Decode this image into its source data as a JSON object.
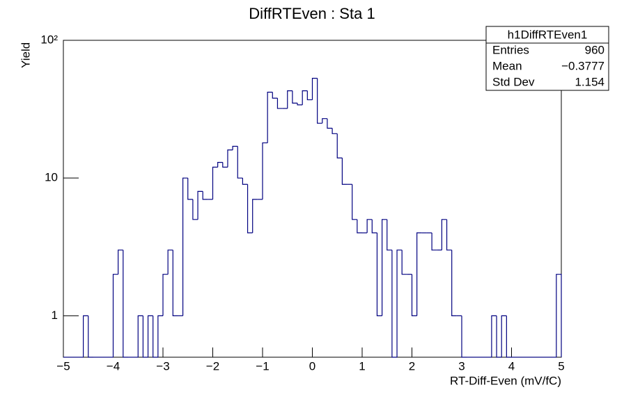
{
  "chart_data": {
    "type": "histogram",
    "title": "DiffRTEven : Sta 1",
    "x_label": "RT-Diff-Even (mV/fC)",
    "y_label": "Yield",
    "color": "#000080",
    "log_y": true,
    "bins": [
      -5,
      -4.9,
      -4.8,
      -4.7,
      -4.6,
      -4.5,
      -4.4,
      -4.3,
      -4.2,
      -4.1,
      -4,
      -3.9,
      -3.8,
      -3.7,
      -3.6,
      -3.5,
      -3.4,
      -3.3,
      -3.2,
      -3.1,
      -3,
      -2.9,
      -2.8,
      -2.7,
      -2.6,
      -2.5,
      -2.4,
      -2.3,
      -2.2,
      -2.1,
      -2,
      -1.9,
      -1.8,
      -1.7,
      -1.6,
      -1.5,
      -1.4,
      -1.3,
      -1.2,
      -1.1,
      -1,
      -0.9,
      -0.8,
      -0.7,
      -0.6,
      -0.5,
      -0.4,
      -0.3,
      -0.2,
      -0.1,
      0,
      0.1,
      0.2,
      0.3,
      0.4,
      0.5,
      0.6,
      0.7,
      0.8,
      0.9,
      1,
      1.1,
      1.2,
      1.3,
      1.4,
      1.5,
      1.6,
      1.7,
      1.8,
      1.9,
      2,
      2.1,
      2.2,
      2.3,
      2.4,
      2.5,
      2.6,
      2.7,
      2.8,
      2.9,
      3,
      3.1,
      3.2,
      3.3,
      3.4,
      3.5,
      3.6,
      3.7,
      3.8,
      3.9,
      4,
      4.1,
      4.2,
      4.3,
      4.4,
      4.5,
      4.6,
      4.7,
      4.8,
      4.9,
      5
    ],
    "values": [
      0,
      0,
      0,
      0,
      1,
      0,
      0,
      0,
      0,
      0,
      2,
      3,
      0,
      0,
      0,
      1,
      0,
      1,
      0,
      1,
      2,
      3,
      1,
      1,
      10,
      7,
      5,
      8,
      7,
      7,
      12,
      13,
      12,
      16,
      17,
      10,
      9,
      4,
      7,
      7,
      18,
      42,
      38,
      32,
      32,
      43,
      35,
      34,
      43,
      37,
      53,
      25,
      27,
      23,
      21,
      14,
      9,
      9,
      5,
      4,
      4,
      5,
      4,
      1,
      5,
      3,
      0,
      3,
      2,
      2,
      1,
      4,
      4,
      4,
      3,
      3,
      5,
      3,
      1,
      1,
      0,
      0,
      0,
      0,
      0,
      0,
      1,
      0,
      1,
      0,
      0,
      0,
      0,
      0,
      0,
      0,
      0,
      0,
      0,
      2
    ],
    "xlim": [
      -5,
      5
    ],
    "ylim": [
      0.5,
      100
    ],
    "xticks": [
      {
        "value": -5,
        "label": "−5"
      },
      {
        "value": -4,
        "label": "−4"
      },
      {
        "value": -3,
        "label": "−3"
      },
      {
        "value": -2,
        "label": "−2"
      },
      {
        "value": -1,
        "label": "−1"
      },
      0,
      1,
      2,
      3,
      4,
      5
    ],
    "yticks": [
      1,
      10,
      {
        "value": 100,
        "label": "10²"
      }
    ],
    "stats": {
      "title": "h1DiffRTEven1",
      "rows": [
        [
          "Entries",
          "960"
        ],
        [
          "Mean",
          "−0.3777"
        ],
        [
          "Std Dev",
          "1.154"
        ]
      ]
    }
  }
}
